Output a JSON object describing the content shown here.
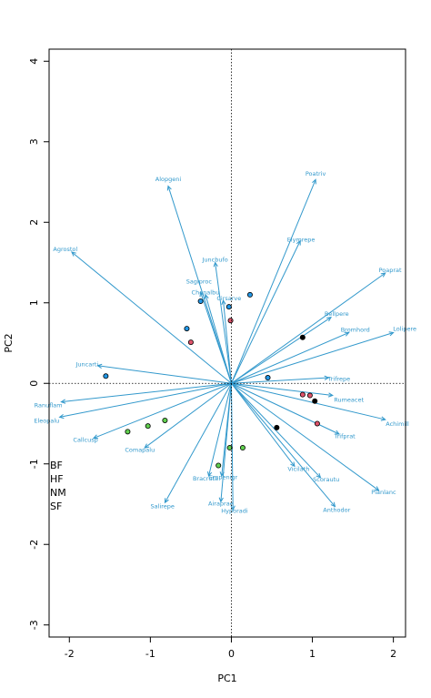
{
  "chart_data": {
    "type": "scatter",
    "title": "",
    "xlabel": "PC1",
    "ylabel": "PC2",
    "xlim": [
      -2.25,
      2.15
    ],
    "ylim": [
      -3.15,
      4.15
    ],
    "x_ticks": [
      -2,
      -1,
      0,
      1,
      2
    ],
    "y_ticks": [
      -3,
      -2,
      -1,
      0,
      1,
      2,
      3,
      4
    ],
    "grid": false,
    "reference_lines": {
      "x": 0,
      "y": 0,
      "style": "dotted"
    },
    "arrow_color": "#3399CC",
    "arrows": [
      {
        "name": "Alopgeni",
        "x": -0.78,
        "y": 2.45,
        "lx": -0.78,
        "ly": 2.54
      },
      {
        "name": "Poatriv",
        "x": 1.04,
        "y": 2.53,
        "lx": 1.04,
        "ly": 2.61
      },
      {
        "name": "Agrostol",
        "x": -1.97,
        "y": 1.63,
        "lx": -2.05,
        "ly": 1.67
      },
      {
        "name": "Elymrepe",
        "x": 0.85,
        "y": 1.77,
        "lx": 0.86,
        "ly": 1.79
      },
      {
        "name": "Juncbufo",
        "x": -0.2,
        "y": 1.5,
        "lx": -0.2,
        "ly": 1.54
      },
      {
        "name": "Poaprat",
        "x": 1.9,
        "y": 1.37,
        "lx": 1.96,
        "ly": 1.41
      },
      {
        "name": "Sagiproc",
        "x": -0.38,
        "y": 1.13,
        "lx": -0.4,
        "ly": 1.27
      },
      {
        "name": "Chenalbu",
        "x": -0.32,
        "y": 1.1,
        "lx": -0.32,
        "ly": 1.13
      },
      {
        "name": "Cirsarve",
        "x": -0.1,
        "y": 1.03,
        "lx": -0.03,
        "ly": 1.06
      },
      {
        "name": "Bellpere",
        "x": 1.23,
        "y": 0.82,
        "lx": 1.3,
        "ly": 0.87
      },
      {
        "name": "Bromhord",
        "x": 1.45,
        "y": 0.63,
        "lx": 1.53,
        "ly": 0.67
      },
      {
        "name": "Lolipere",
        "x": 2.0,
        "y": 0.63,
        "lx": 2.14,
        "ly": 0.68
      },
      {
        "name": "Juncarti",
        "x": -1.65,
        "y": 0.22,
        "lx": -1.78,
        "ly": 0.24
      },
      {
        "name": "Trifrepe",
        "x": 1.2,
        "y": 0.07,
        "lx": 1.33,
        "ly": 0.06
      },
      {
        "name": "Rumeacet",
        "x": 1.25,
        "y": -0.15,
        "lx": 1.45,
        "ly": -0.2
      },
      {
        "name": "Ranuflam",
        "x": -2.1,
        "y": -0.23,
        "lx": -2.26,
        "ly": -0.27
      },
      {
        "name": "Eleopalu",
        "x": -2.12,
        "y": -0.42,
        "lx": -2.28,
        "ly": -0.46
      },
      {
        "name": "Achimill",
        "x": 1.9,
        "y": -0.45,
        "lx": 2.05,
        "ly": -0.5
      },
      {
        "name": "Trifprat",
        "x": 1.33,
        "y": -0.63,
        "lx": 1.4,
        "ly": -0.65
      },
      {
        "name": "Callcusp",
        "x": -1.7,
        "y": -0.68,
        "lx": -1.8,
        "ly": -0.7
      },
      {
        "name": "Comapalu",
        "x": -1.07,
        "y": -0.8,
        "lx": -1.13,
        "ly": -0.82
      },
      {
        "name": "Vicilath",
        "x": 0.78,
        "y": -1.03,
        "lx": 0.83,
        "ly": -1.06
      },
      {
        "name": "Scorautu",
        "x": 1.1,
        "y": -1.17,
        "lx": 1.17,
        "ly": -1.19
      },
      {
        "name": "Planlanc",
        "x": 1.82,
        "y": -1.33,
        "lx": 1.88,
        "ly": -1.35
      },
      {
        "name": "Bracruta",
        "x": -0.28,
        "y": -1.15,
        "lx": -0.32,
        "ly": -1.18
      },
      {
        "name": "Empenigr",
        "x": -0.12,
        "y": -1.15,
        "lx": -0.1,
        "ly": -1.16
      },
      {
        "name": "Salirepe",
        "x": -0.82,
        "y": -1.48,
        "lx": -0.85,
        "ly": -1.52
      },
      {
        "name": "Airaprae",
        "x": -0.13,
        "y": -1.47,
        "lx": -0.13,
        "ly": -1.49
      },
      {
        "name": "Hyporadi",
        "x": 0.02,
        "y": -1.57,
        "lx": 0.04,
        "ly": -1.58
      },
      {
        "name": "Anthodor",
        "x": 1.28,
        "y": -1.53,
        "lx": 1.3,
        "ly": -1.57
      }
    ],
    "series": [
      {
        "name": "BF",
        "color": "#000000",
        "points": [
          [
            0.88,
            0.57
          ],
          [
            1.03,
            -0.22
          ],
          [
            0.56,
            -0.55
          ]
        ]
      },
      {
        "name": "HF",
        "color": "#DF536B",
        "points": [
          [
            -0.5,
            0.51
          ],
          [
            -0.01,
            0.78
          ],
          [
            0.88,
            -0.14
          ],
          [
            0.97,
            -0.15
          ],
          [
            1.06,
            -0.5
          ]
        ]
      },
      {
        "name": "NM",
        "color": "#61D04F",
        "points": [
          [
            -0.82,
            -0.46
          ],
          [
            -1.03,
            -0.53
          ],
          [
            -1.28,
            -0.6
          ],
          [
            -0.02,
            -0.8
          ],
          [
            0.14,
            -0.8
          ],
          [
            -0.16,
            -1.02
          ]
        ]
      },
      {
        "name": "SF",
        "color": "#2297E6",
        "points": [
          [
            -1.55,
            0.09
          ],
          [
            -0.55,
            0.68
          ],
          [
            -0.38,
            1.02
          ],
          [
            -0.03,
            0.95
          ],
          [
            0.23,
            1.1
          ],
          [
            0.45,
            0.07
          ]
        ]
      }
    ],
    "group_labels": [
      "BF",
      "HF",
      "NM",
      "SF"
    ]
  }
}
